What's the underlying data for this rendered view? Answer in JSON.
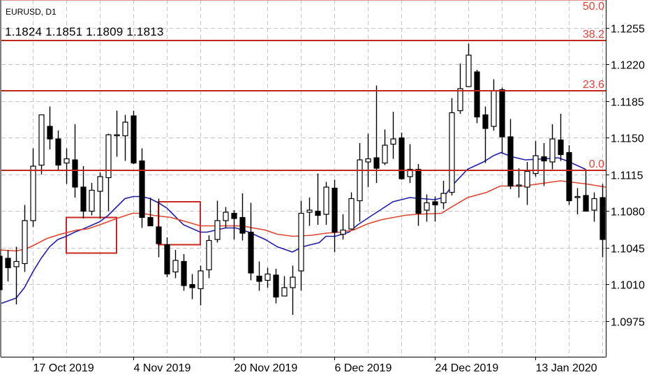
{
  "header": {
    "symbol": "EURUSD, D1",
    "ohlc": "1.1824 1.1851 1.1809 1.1813"
  },
  "colors": {
    "bull_body": "#ffffff",
    "bear_body": "#000000",
    "fast_ma": "#1f1fa8",
    "slow_ma": "#e0442e",
    "fib_line": "#c0281c",
    "fib_text": "#d9453a",
    "rect": "#c8281e",
    "grid": "#c4c4c4"
  },
  "chart_data": {
    "type": "candlestick",
    "title": "EURUSD, D1",
    "ylim": [
      1.0947,
      1.1282
    ],
    "grid": true,
    "y_ticks": [
      "1.1255",
      "1.1220",
      "1.1185",
      "1.1150",
      "1.1115",
      "1.1080",
      "1.1045",
      "1.1010",
      "1.0975"
    ],
    "x_ticks": [
      {
        "bar": 3,
        "label": "17 Oct 2019"
      },
      {
        "bar": 15,
        "label": "4 Nov 2019"
      },
      {
        "bar": 27,
        "label": "20 Nov 2019"
      },
      {
        "bar": 39,
        "label": "6 Dec 2019"
      },
      {
        "bar": 51,
        "label": "24 Dec 2019"
      },
      {
        "bar": 63,
        "label": "13 Jan 2020"
      }
    ],
    "first_bar": -1,
    "candles_ohlc": [
      [
        1.1037,
        1.1042,
        1.1005,
        1.1005
      ],
      [
        1.1035,
        1.1043,
        1.1013,
        1.1026
      ],
      [
        1.1027,
        1.1046,
        1.0991,
        1.1032
      ],
      [
        1.103,
        1.1086,
        1.1022,
        1.1071
      ],
      [
        1.1071,
        1.114,
        1.1065,
        1.1123
      ],
      [
        1.1124,
        1.1172,
        1.1115,
        1.1172
      ],
      [
        1.1161,
        1.118,
        1.1139,
        1.1149
      ],
      [
        1.1149,
        1.1157,
        1.1119,
        1.1124
      ],
      [
        1.1126,
        1.114,
        1.1106,
        1.113
      ],
      [
        1.1129,
        1.1163,
        1.1093,
        1.1103
      ],
      [
        1.1103,
        1.1123,
        1.1073,
        1.108
      ],
      [
        1.108,
        1.1107,
        1.1076,
        1.11
      ],
      [
        1.1099,
        1.1117,
        1.1073,
        1.1113
      ],
      [
        1.1112,
        1.1154,
        1.108,
        1.1153
      ],
      [
        1.1152,
        1.1176,
        1.1132,
        1.1153
      ],
      [
        1.1152,
        1.1172,
        1.1128,
        1.1165
      ],
      [
        1.1171,
        1.1176,
        1.1125,
        1.1126
      ],
      [
        1.1128,
        1.114,
        1.1064,
        1.1074
      ],
      [
        1.1074,
        1.1093,
        1.1066,
        1.1066
      ],
      [
        1.1065,
        1.1092,
        1.1036,
        1.1049
      ],
      [
        1.1048,
        1.1055,
        1.1017,
        1.102
      ],
      [
        1.1022,
        1.1043,
        1.1016,
        1.1033
      ],
      [
        1.1032,
        1.1039,
        1.1004,
        1.1009
      ],
      [
        1.101,
        1.102,
        1.0996,
        1.1007
      ],
      [
        1.1006,
        1.1028,
        1.099,
        1.1023
      ],
      [
        1.1024,
        1.1057,
        1.1016,
        1.1052
      ],
      [
        1.1053,
        1.109,
        1.105,
        1.1071
      ],
      [
        1.1071,
        1.1084,
        1.1064,
        1.1079
      ],
      [
        1.1078,
        1.1081,
        1.1053,
        1.1073
      ],
      [
        1.1074,
        1.1097,
        1.1052,
        1.1059
      ],
      [
        1.106,
        1.1088,
        1.1014,
        1.1021
      ],
      [
        1.1018,
        1.1032,
        1.1004,
        1.1013
      ],
      [
        1.1014,
        1.1026,
        1.1007,
        1.102
      ],
      [
        1.1019,
        1.1025,
        1.0992,
        1.0998
      ],
      [
        1.0999,
        1.1018,
        1.0999,
        1.1007
      ],
      [
        1.1007,
        1.1028,
        1.0981,
        1.1017
      ],
      [
        1.1023,
        1.109,
        1.1004,
        1.1078
      ],
      [
        1.1079,
        1.1093,
        1.1066,
        1.1081
      ],
      [
        1.108,
        1.1116,
        1.1067,
        1.1076
      ],
      [
        1.1077,
        1.1108,
        1.1067,
        1.1103
      ],
      [
        1.1102,
        1.111,
        1.1041,
        1.106
      ],
      [
        1.1058,
        1.1077,
        1.1053,
        1.1062
      ],
      [
        1.1063,
        1.1098,
        1.1063,
        1.1092
      ],
      [
        1.109,
        1.1145,
        1.107,
        1.1129
      ],
      [
        1.1127,
        1.1154,
        1.1103,
        1.113
      ],
      [
        1.1131,
        1.12,
        1.1107,
        1.1121
      ],
      [
        1.1126,
        1.1158,
        1.1124,
        1.1143
      ],
      [
        1.1144,
        1.1175,
        1.113,
        1.1149
      ],
      [
        1.115,
        1.1155,
        1.111,
        1.1111
      ],
      [
        1.1113,
        1.1144,
        1.1107,
        1.112
      ],
      [
        1.112,
        1.1125,
        1.1066,
        1.1078
      ],
      [
        1.1081,
        1.1096,
        1.107,
        1.1088
      ],
      [
        1.1089,
        1.1094,
        1.107,
        1.1086
      ],
      [
        1.1088,
        1.1109,
        1.1082,
        1.1097
      ],
      [
        1.1098,
        1.1188,
        1.1095,
        1.1174
      ],
      [
        1.1176,
        1.1221,
        1.1173,
        1.1197
      ],
      [
        1.1199,
        1.124,
        1.1199,
        1.1229
      ],
      [
        1.1213,
        1.1215,
        1.1164,
        1.117
      ],
      [
        1.1172,
        1.118,
        1.1126,
        1.1159
      ],
      [
        1.1161,
        1.1206,
        1.1157,
        1.1195
      ],
      [
        1.1196,
        1.1198,
        1.1135,
        1.1151
      ],
      [
        1.1151,
        1.1168,
        1.1101,
        1.1104
      ],
      [
        1.1104,
        1.1121,
        1.1093,
        1.1105
      ],
      [
        1.1103,
        1.1127,
        1.1086,
        1.1118
      ],
      [
        1.1116,
        1.1147,
        1.1113,
        1.1133
      ],
      [
        1.1132,
        1.1145,
        1.1104,
        1.1128
      ],
      [
        1.1127,
        1.1163,
        1.112,
        1.1149
      ],
      [
        1.1148,
        1.1173,
        1.1128,
        1.1134
      ],
      [
        1.1136,
        1.1143,
        1.1086,
        1.109
      ],
      [
        1.1094,
        1.1102,
        1.1077,
        1.1094
      ],
      [
        1.1095,
        1.112,
        1.108,
        1.108
      ],
      [
        1.1081,
        1.1098,
        1.107,
        1.1092
      ],
      [
        1.1093,
        1.1106,
        1.1036,
        1.1053
      ]
    ],
    "series": [
      {
        "name": "fast-ma",
        "points": [
          [
            -0.75,
            1.0992
          ],
          [
            1,
            1.0997
          ],
          [
            2,
            1.1007
          ],
          [
            3,
            1.1022
          ],
          [
            4,
            1.1035
          ],
          [
            5,
            1.1046
          ],
          [
            6,
            1.1053
          ],
          [
            7,
            1.1056
          ],
          [
            8,
            1.106
          ],
          [
            9,
            1.1063
          ],
          [
            11,
            1.107
          ],
          [
            12,
            1.1076
          ],
          [
            13,
            1.1084
          ],
          [
            14,
            1.1092
          ],
          [
            15,
            1.1094
          ],
          [
            16,
            1.1094
          ],
          [
            17,
            1.1092
          ],
          [
            18,
            1.1088
          ],
          [
            19,
            1.1083
          ],
          [
            20,
            1.1075
          ],
          [
            21,
            1.1067
          ],
          [
            23,
            1.106
          ],
          [
            23.8,
            1.106
          ],
          [
            26,
            1.1064
          ],
          [
            27.25,
            1.1064
          ],
          [
            28.8,
            1.106
          ],
          [
            30.75,
            1.1053
          ],
          [
            32.2,
            1.1046
          ],
          [
            34,
            1.1041
          ],
          [
            35.2,
            1.1046
          ],
          [
            37.2,
            1.105
          ],
          [
            38,
            1.1056
          ],
          [
            39.1,
            1.1056
          ],
          [
            40.75,
            1.106
          ],
          [
            41.8,
            1.1067
          ],
          [
            43.5,
            1.1076
          ],
          [
            46,
            1.1089
          ],
          [
            48,
            1.1093
          ],
          [
            51,
            1.1091
          ],
          [
            52,
            1.1093
          ],
          [
            53.25,
            1.1106
          ],
          [
            54.9,
            1.112
          ],
          [
            56.8,
            1.1127
          ],
          [
            58,
            1.1133
          ],
          [
            58.9,
            1.1136
          ],
          [
            60.2,
            1.1132
          ],
          [
            61.8,
            1.1129
          ],
          [
            64.1,
            1.113
          ],
          [
            65.75,
            1.1131
          ],
          [
            66.8,
            1.1128
          ],
          [
            69,
            1.112
          ]
        ]
      },
      {
        "name": "slow-ma",
        "points": [
          [
            -0.9,
            1.1043
          ],
          [
            1,
            1.1042
          ],
          [
            2.2,
            1.1044
          ],
          [
            3.25,
            1.1048
          ],
          [
            4.7,
            1.1054
          ],
          [
            6.3,
            1.1058
          ],
          [
            8.25,
            1.1062
          ],
          [
            9.5,
            1.1063
          ],
          [
            11,
            1.1067
          ],
          [
            13,
            1.1073
          ],
          [
            14.9,
            1.1078
          ],
          [
            16,
            1.1078
          ],
          [
            17.4,
            1.1076
          ],
          [
            19.5,
            1.1074
          ],
          [
            21.3,
            1.107
          ],
          [
            23,
            1.1066
          ],
          [
            25.75,
            1.1066
          ],
          [
            28,
            1.1066
          ],
          [
            29.3,
            1.1064
          ],
          [
            30.75,
            1.1062
          ],
          [
            32.2,
            1.1058
          ],
          [
            34.1,
            1.1056
          ],
          [
            36.3,
            1.1057
          ],
          [
            38,
            1.1059
          ],
          [
            39.7,
            1.106
          ],
          [
            41.3,
            1.1062
          ],
          [
            43,
            1.1068
          ],
          [
            44.7,
            1.1072
          ],
          [
            47.4,
            1.1076
          ],
          [
            48.8,
            1.1077
          ],
          [
            51.8,
            1.1078
          ],
          [
            53,
            1.1084
          ],
          [
            54.9,
            1.1093
          ],
          [
            57.2,
            1.1098
          ],
          [
            58.8,
            1.1104
          ],
          [
            61.6,
            1.1104
          ],
          [
            66,
            1.1109
          ],
          [
            69.1,
            1.1106
          ],
          [
            71.4,
            1.1103
          ]
        ]
      }
    ],
    "fibonacci": [
      {
        "label": "50.0",
        "price": 1.1282
      },
      {
        "label": "38.2",
        "price": 1.1243
      },
      {
        "label": "23.6",
        "price": 1.1195
      },
      {
        "label": "0.0",
        "price": 1.1119
      }
    ],
    "rectangles": [
      {
        "from_bar": 7,
        "to_bar": 13,
        "price_top": 1.1074,
        "price_bottom": 1.104
      },
      {
        "from_bar": 18,
        "to_bar": 23,
        "price_top": 1.1089,
        "price_bottom": 1.1048
      }
    ]
  }
}
